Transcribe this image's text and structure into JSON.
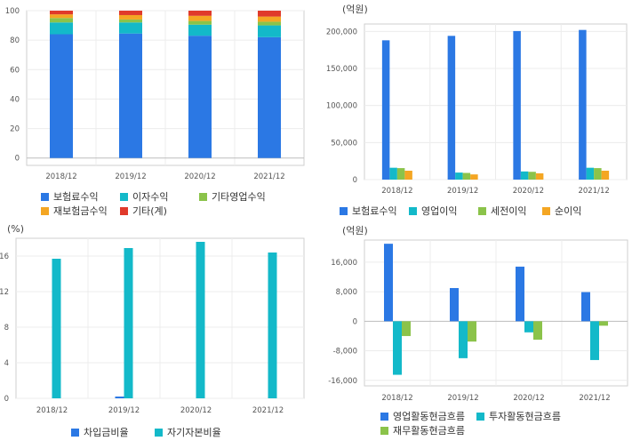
{
  "chart_data": [
    {
      "id": "revenue_mix",
      "type": "bar",
      "stacked": true,
      "unit": "",
      "categories": [
        "2018/12",
        "2019/12",
        "2020/12",
        "2021/12"
      ],
      "ylim": [
        -5,
        100
      ],
      "yticks": [
        0,
        20,
        40,
        60,
        80,
        100
      ],
      "grid": true,
      "legend": "bottom",
      "series": [
        {
          "name": "보험료수익",
          "color": "#2b78e4",
          "values": [
            84,
            84.5,
            83,
            82
          ]
        },
        {
          "name": "이자수익",
          "color": "#13b9c9",
          "values": [
            8,
            7.5,
            7.5,
            8
          ]
        },
        {
          "name": "기타영업수익",
          "color": "#8bc34a",
          "values": [
            3,
            2,
            2.5,
            2.5
          ]
        },
        {
          "name": "재보험금수익",
          "color": "#f4a623",
          "values": [
            2.5,
            3,
            3.5,
            3.5
          ]
        },
        {
          "name": "기타(계)",
          "color": "#e03a2b",
          "values": [
            2.5,
            3,
            3.5,
            4
          ]
        }
      ]
    },
    {
      "id": "income",
      "type": "bar",
      "unit": "(억원)",
      "categories": [
        "2018/12",
        "2019/12",
        "2020/12",
        "2021/12"
      ],
      "ylim": [
        0,
        210000
      ],
      "yticks": [
        0,
        50000,
        100000,
        150000,
        200000
      ],
      "ytick_labels": [
        "0",
        "50,000",
        "100,000",
        "150,000",
        "200,000"
      ],
      "grid": true,
      "legend": "bottom",
      "series": [
        {
          "name": "보험료수익",
          "color": "#2b78e4",
          "values": [
            188000,
            194000,
            200500,
            202000
          ]
        },
        {
          "name": "영업이익",
          "color": "#13b9c9",
          "values": [
            16000,
            9500,
            11000,
            16000
          ]
        },
        {
          "name": "세전이익",
          "color": "#8bc34a",
          "values": [
            15500,
            9000,
            10500,
            15500
          ]
        },
        {
          "name": "순이익",
          "color": "#f4a623",
          "values": [
            12000,
            7000,
            8500,
            12000
          ]
        }
      ]
    },
    {
      "id": "ratios",
      "type": "bar",
      "unit": "(%)",
      "categories": [
        "2018/12",
        "2019/12",
        "2020/12",
        "2021/12"
      ],
      "ylim": [
        0,
        18
      ],
      "yticks": [
        0,
        4,
        8,
        12,
        16
      ],
      "grid": true,
      "legend": "bottom",
      "series": [
        {
          "name": "차입금비율",
          "color": "#2b78e4",
          "values": [
            0,
            0.2,
            0,
            0
          ]
        },
        {
          "name": "자기자본비율",
          "color": "#13b9c9",
          "values": [
            15.7,
            16.9,
            17.6,
            16.4
          ]
        }
      ]
    },
    {
      "id": "cashflow",
      "type": "bar",
      "unit": "(억원)",
      "categories": [
        "2018/12",
        "2019/12",
        "2020/12",
        "2021/12"
      ],
      "ylim": [
        -17500,
        22000
      ],
      "yticks": [
        -16000,
        -8000,
        0,
        8000,
        16000
      ],
      "ytick_labels": [
        "-16,000",
        "-8,000",
        "0",
        "8,000",
        "16,000"
      ],
      "grid": true,
      "legend": "bottom",
      "series": [
        {
          "name": "영업활동현금흐름",
          "color": "#2b78e4",
          "values": [
            21000,
            9000,
            14800,
            7900
          ]
        },
        {
          "name": "투자활동현금흐름",
          "color": "#13b9c9",
          "values": [
            -14500,
            -10000,
            -3000,
            -10500
          ]
        },
        {
          "name": "재무활동현금흐름",
          "color": "#8bc34a",
          "values": [
            -4000,
            -5500,
            -5000,
            -1200
          ]
        }
      ]
    }
  ]
}
